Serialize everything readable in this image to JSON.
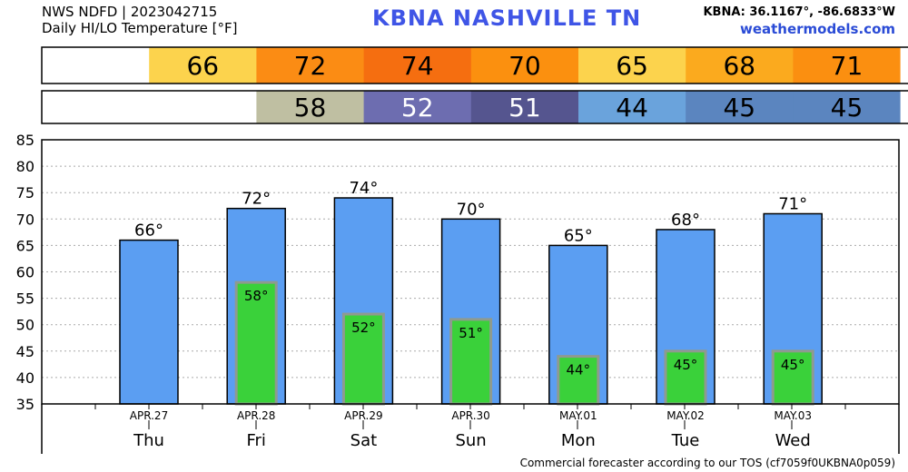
{
  "header": {
    "line1": "NWS NDFD | 2023042715",
    "line2": "Daily HI/LO Temperature [°F]",
    "center_title": "KBNA   NASHVILLE      TN",
    "coords": "KBNA: 36.1167°, -86.6833°W",
    "site": "weathermodels.com"
  },
  "footer": {
    "note": "Commercial forecaster according to our TOS (cf7059f0UKBNA0p059)"
  },
  "colors": {
    "hi_bar": "#5b9ef2",
    "lo_bar": "#3ad13a",
    "lo_bar_border": "#8f9a8f",
    "axis": "#000000",
    "grid": "#aaaaaa"
  },
  "hi_strip": {
    "values": [
      "",
      "66",
      "72",
      "74",
      "70",
      "65",
      "68",
      "71",
      ""
    ],
    "colors": [
      "#ffffff",
      "#fcd34d",
      "#fb8c14",
      "#f56e10",
      "#fb900f",
      "#fcd34d",
      "#fbaa1e",
      "#fb8f10",
      "#ffffff"
    ]
  },
  "lo_strip": {
    "values": [
      "",
      "",
      "58",
      "52",
      "51",
      "44",
      "45",
      "45",
      ""
    ],
    "colors": [
      "#ffffff",
      "#ffffff",
      "#bfbfa2",
      "#6d6db0",
      "#55558f",
      "#6aa3dc",
      "#5b85bf",
      "#5b85bf",
      "#ffffff"
    ]
  },
  "chart_data": {
    "type": "bar",
    "title": "",
    "xlabel": "",
    "ylabel": "",
    "ylim": [
      35,
      85
    ],
    "yticks": [
      35,
      40,
      45,
      50,
      55,
      60,
      65,
      70,
      75,
      80,
      85
    ],
    "grid": true,
    "categories": [
      "Thu",
      "Fri",
      "Sat",
      "Sun",
      "Mon",
      "Tue",
      "Wed"
    ],
    "dates": [
      "APR.27",
      "APR.28",
      "APR.29",
      "APR.30",
      "MAY.01",
      "MAY.02",
      "MAY.03"
    ],
    "series": [
      {
        "name": "HI",
        "values": [
          66,
          72,
          74,
          70,
          65,
          68,
          71
        ],
        "labels": [
          "66°",
          "72°",
          "74°",
          "70°",
          "65°",
          "68°",
          "71°"
        ]
      },
      {
        "name": "LO",
        "values": [
          null,
          58,
          52,
          51,
          44,
          45,
          45
        ],
        "labels": [
          "",
          "58°",
          "52°",
          "51°",
          "44°",
          "45°",
          "45°"
        ]
      }
    ]
  }
}
